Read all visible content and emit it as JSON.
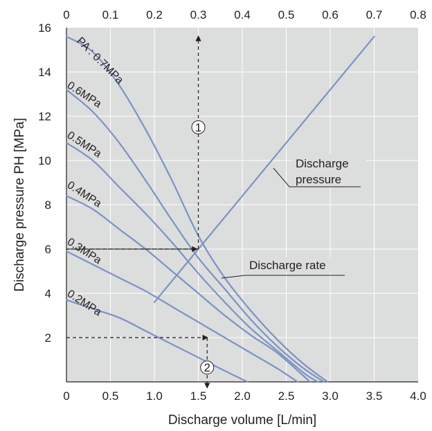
{
  "chart_data": {
    "type": "line",
    "xlabel": "Discharge volume [L/min]",
    "ylabel": "Discharge pressure  PH [MPa]",
    "x_ticks": [
      "0.5",
      "1.0",
      "1.5",
      "2.0",
      "2.5",
      "3.0",
      "3.5",
      "4.0"
    ],
    "x_origin_label": "0",
    "y_ticks": [
      "2",
      "4",
      "6",
      "8",
      "10",
      "12",
      "14",
      "16"
    ],
    "top_ticks": [
      "0",
      "0.1",
      "0.2",
      "0.3",
      "0.4",
      "0.5",
      "0.6",
      "0.7",
      "0.8"
    ],
    "xlim": [
      0,
      4.0
    ],
    "ylim": [
      0,
      16
    ],
    "top_axis_range": [
      0,
      0.8
    ],
    "grid": true,
    "colors": {
      "curve": "#7b93c2",
      "plot_bg": "#dcdddd",
      "grid": "#ffffff",
      "text": "#231f20"
    },
    "series": [
      {
        "name": "PA : 0.7MPa",
        "x": [
          0,
          0.3,
          0.6,
          0.9,
          1.2,
          1.5,
          1.8,
          2.1,
          2.4,
          2.7,
          2.97
        ],
        "y": [
          15.6,
          14.9,
          13.4,
          11.4,
          9.1,
          6.6,
          4.7,
          3.2,
          1.9,
          0.8,
          0
        ]
      },
      {
        "name": "0.6MPa",
        "x": [
          0,
          0.3,
          0.6,
          0.9,
          1.2,
          1.5,
          1.8,
          2.1,
          2.4,
          2.7,
          2.93
        ],
        "y": [
          13.2,
          12.2,
          10.8,
          9.1,
          7.3,
          5.6,
          4.2,
          2.8,
          1.6,
          0.6,
          0
        ]
      },
      {
        "name": "0.5MPa",
        "x": [
          0,
          0.3,
          0.6,
          0.9,
          1.2,
          1.5,
          1.8,
          2.1,
          2.4,
          2.7,
          2.86
        ],
        "y": [
          10.8,
          10.0,
          8.8,
          7.6,
          6.3,
          4.9,
          3.6,
          2.4,
          1.4,
          0.4,
          0
        ]
      },
      {
        "name": "0.4MPa",
        "x": [
          0,
          0.3,
          0.6,
          0.9,
          1.2,
          1.5,
          1.8,
          2.1,
          2.4,
          2.77
        ],
        "y": [
          8.4,
          7.8,
          6.9,
          6.0,
          5.0,
          4.0,
          3.0,
          2.1,
          1.3,
          0
        ]
      },
      {
        "name": "0.3MPa",
        "x": [
          0,
          0.3,
          0.6,
          0.9,
          1.2,
          1.5,
          1.8,
          2.1,
          2.4,
          2.63
        ],
        "y": [
          5.9,
          5.3,
          4.7,
          4.1,
          3.4,
          2.7,
          2.0,
          1.3,
          0.6,
          0
        ]
      },
      {
        "name": "0.2MPa",
        "x": [
          0,
          0.3,
          0.6,
          0.9,
          1.2,
          1.5,
          1.8,
          2.06
        ],
        "y": [
          3.7,
          3.3,
          2.9,
          2.3,
          1.7,
          1.1,
          0.5,
          0
        ]
      },
      {
        "name": "Discharge pressure",
        "x": [
          0.2,
          0.7
        ],
        "y": [
          3.6,
          15.6
        ]
      }
    ],
    "curve_labels": [
      "PA : 0.7MPa",
      "0.6MPa",
      "0.5MPa",
      "0.4MPa",
      "0.3MPa",
      "0.2MPa"
    ],
    "annotations": {
      "pressure_line_label_1": "Discharge",
      "pressure_line_label_2": "pressure",
      "rate_label": "Discharge rate",
      "marker_1": "1",
      "marker_2": "2"
    }
  }
}
